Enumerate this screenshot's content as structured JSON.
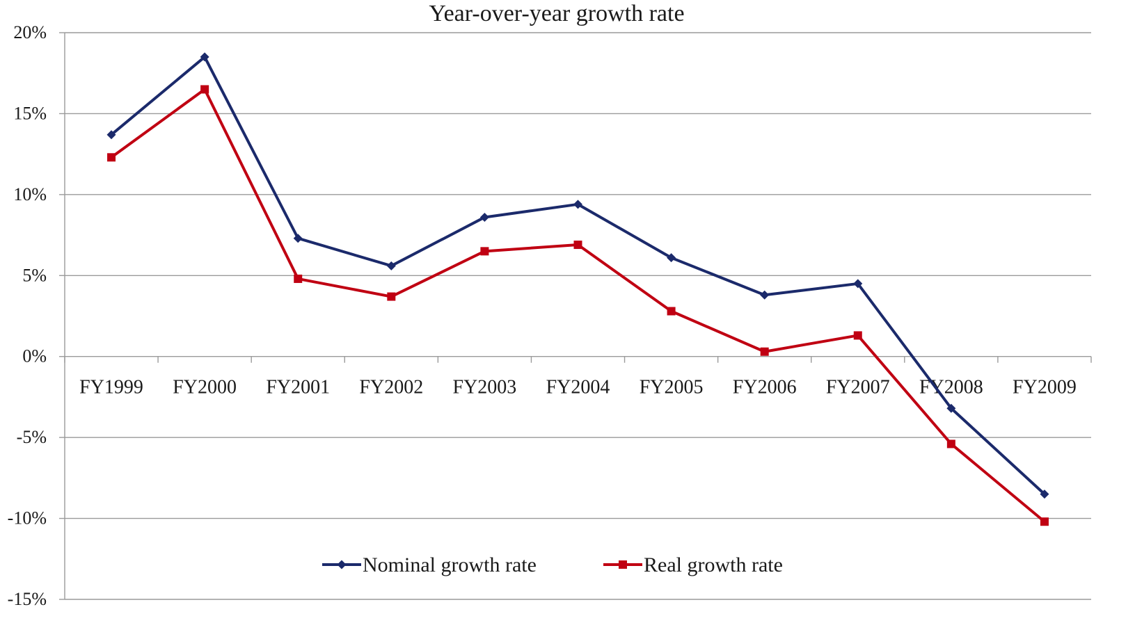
{
  "chart_data": {
    "type": "line",
    "title": "Year-over-year growth rate",
    "xlabel": "",
    "ylabel": "",
    "categories": [
      "FY1999",
      "FY2000",
      "FY2001",
      "FY2002",
      "FY2003",
      "FY2004",
      "FY2005",
      "FY2006",
      "FY2007",
      "FY2008",
      "FY2009"
    ],
    "ylim": [
      -15,
      20
    ],
    "yticks": [
      20,
      15,
      10,
      5,
      0,
      -5,
      -10,
      -15
    ],
    "ytick_labels": [
      "20%",
      "15%",
      "10%",
      "5%",
      "0%",
      "-5%",
      "-10%",
      "-15%"
    ],
    "grid": true,
    "legend_position": "bottom",
    "series": [
      {
        "name": "Nominal growth rate",
        "color": "#1b2a6b",
        "marker": "diamond",
        "values": [
          13.7,
          18.5,
          7.3,
          5.6,
          8.6,
          9.4,
          6.1,
          3.8,
          4.5,
          -3.2,
          -8.5
        ]
      },
      {
        "name": "Real growth rate",
        "color": "#c00012",
        "marker": "square",
        "values": [
          12.3,
          16.5,
          4.8,
          3.7,
          6.5,
          6.9,
          2.8,
          0.3,
          1.3,
          -5.4,
          -10.2
        ]
      }
    ]
  }
}
